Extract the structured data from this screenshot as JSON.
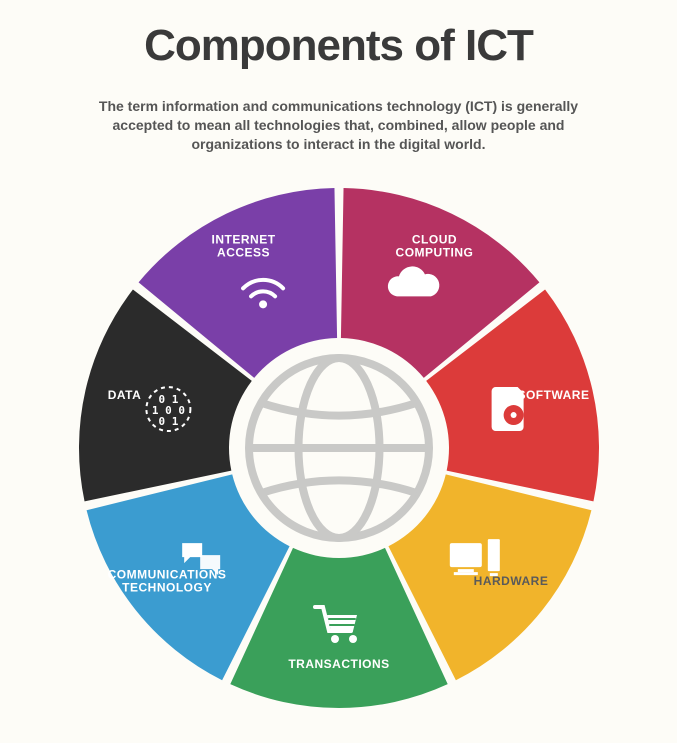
{
  "title": "Components of ICT",
  "subtitle": "The term information and communications technology (ICT) is generally accepted to mean all technologies that, combined, allow people and organizations to interact in the digital world.",
  "chart": {
    "type": "donut",
    "size": 540,
    "outer_radius": 260,
    "inner_radius": 110,
    "gap_deg": 2,
    "background_color": "#fdfcf7",
    "center_icon_color": "#c9c9c7",
    "center_icon": "globe",
    "start_angle_deg": -90,
    "segments": [
      {
        "id": "cloud",
        "label_lines": [
          "CLOUD",
          "COMPUTING"
        ],
        "color": "#b53262",
        "icon": "cloud",
        "label_color": "#ffffff"
      },
      {
        "id": "software",
        "label_lines": [
          "SOFTWARE"
        ],
        "color": "#dc3b3a",
        "icon": "disc",
        "label_color": "#ffffff"
      },
      {
        "id": "hardware",
        "label_lines": [
          "HARDWARE"
        ],
        "color": "#f1b42b",
        "icon": "computer",
        "label_color": "#5a5a5a"
      },
      {
        "id": "transactions",
        "label_lines": [
          "TRANSACTIONS"
        ],
        "color": "#3aa05a",
        "icon": "cart",
        "label_color": "#ffffff"
      },
      {
        "id": "comms",
        "label_lines": [
          "COMMUNICATIONS",
          "TECHNOLOGY"
        ],
        "color": "#3b9cd0",
        "icon": "chat",
        "label_color": "#ffffff"
      },
      {
        "id": "data",
        "label_lines": [
          "DATA"
        ],
        "color": "#2b2b2b",
        "icon": "binary",
        "label_color": "#ffffff"
      },
      {
        "id": "internet",
        "label_lines": [
          "INTERNET",
          "ACCESS"
        ],
        "color": "#7a3fa8",
        "icon": "wifi",
        "label_color": "#ffffff"
      }
    ],
    "label_radius": 220,
    "icon_radius": 175,
    "icon_size": 46,
    "label_fontsize": 12,
    "title_fontsize": 44,
    "subtitle_fontsize": 14
  }
}
